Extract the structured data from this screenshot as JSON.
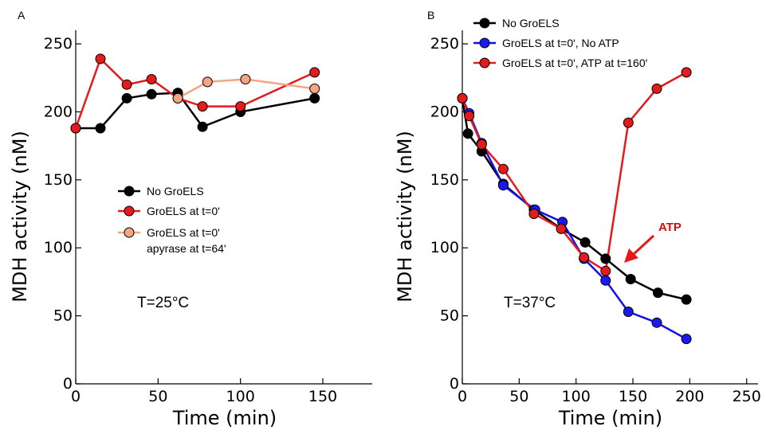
{
  "chart_data": [
    {
      "type": "line",
      "panel_label": "A",
      "xlabel": "Time (min)",
      "ylabel": "MDH activity (nM)",
      "xlim": [
        0,
        180
      ],
      "ylim": [
        0,
        260
      ],
      "x_ticks": [
        0,
        50,
        100,
        150
      ],
      "y_ticks": [
        0,
        50,
        100,
        150,
        200,
        250
      ],
      "grid": false,
      "legend_position": "center-left",
      "annotation": "T=25°C",
      "series": [
        {
          "name": "No GroELS",
          "color": "#000000",
          "marker_fill": "#000000",
          "x": [
            0,
            15,
            31,
            46,
            62,
            77,
            100,
            145
          ],
          "y": [
            188,
            188,
            210,
            213,
            214,
            189,
            200,
            210
          ]
        },
        {
          "name": "GroELS at t=0'",
          "color": "#e41a1c",
          "marker_fill": "#e41a1c",
          "x": [
            0,
            15,
            31,
            46,
            62,
            77,
            100,
            145
          ],
          "y": [
            188,
            239,
            220,
            224,
            210,
            204,
            204,
            229
          ]
        },
        {
          "name": "GroELS at t=0'",
          "name_line2": "apyrase at t=64'",
          "color": "#f4a582",
          "marker_fill": "#f4a582",
          "x": [
            62,
            80,
            103,
            145
          ],
          "y": [
            210,
            222,
            224,
            217
          ]
        }
      ]
    },
    {
      "type": "line",
      "panel_label": "B",
      "xlabel": "Time (min)",
      "ylabel": "MDH activity (nM)",
      "xlim": [
        0,
        260
      ],
      "ylim": [
        0,
        260
      ],
      "x_ticks": [
        0,
        50,
        100,
        150,
        200,
        250
      ],
      "y_ticks": [
        0,
        50,
        100,
        150,
        200,
        250
      ],
      "grid": false,
      "legend_position": "top-left",
      "annotation": "T=37°C",
      "arrow_label": "ATP",
      "series": [
        {
          "name": "No GroELS",
          "color": "#000000",
          "marker_fill": "#000000",
          "x": [
            0,
            5,
            17,
            36,
            63,
            87,
            108,
            126,
            148,
            172,
            197
          ],
          "y": [
            210,
            184,
            171,
            147,
            128,
            114,
            104,
            92,
            77,
            67,
            62
          ]
        },
        {
          "name": "GroELS at t=0', No ATP",
          "color": "#1010ee",
          "marker_fill": "#1a1aee",
          "x": [
            0,
            6,
            17,
            36,
            64,
            88,
            107,
            126,
            146,
            171,
            197
          ],
          "y": [
            210,
            199,
            177,
            146,
            128,
            119,
            92,
            76,
            53,
            45,
            33
          ]
        },
        {
          "name": "GroELS at t=0', ATP at t=160'",
          "color": "#e41a1c",
          "marker_fill": "#e41a1c",
          "x": [
            0,
            6,
            17,
            36,
            63,
            87,
            107,
            126,
            146,
            171,
            197
          ],
          "y": [
            210,
            197,
            176,
            158,
            125,
            114,
            93,
            83,
            192,
            217,
            229
          ]
        }
      ]
    }
  ]
}
